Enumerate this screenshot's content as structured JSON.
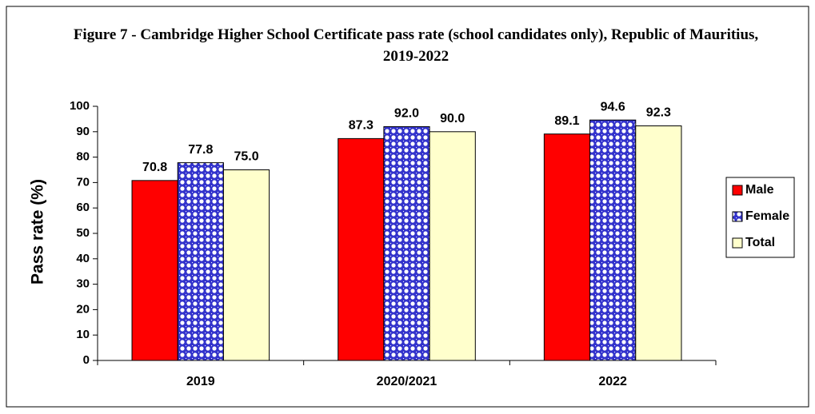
{
  "chart_data": {
    "type": "bar",
    "title": "Figure 7 - Cambridge Higher School Certificate  pass rate (school candidates only), Republic of Mauritius, 2019-2022",
    "y_label": "Pass rate (%)",
    "categories": [
      "2019",
      "2020/2021",
      "2022"
    ],
    "series": [
      {
        "name": "Male",
        "color": "#ff0000",
        "values": [
          70.8,
          87.3,
          89.1
        ],
        "value_labels": [
          "70.8",
          "87.3",
          "89.1"
        ]
      },
      {
        "name": "Female",
        "color": "#3333cc",
        "pattern": "dots",
        "values": [
          77.8,
          92.0,
          94.6
        ],
        "value_labels": [
          "77.8",
          "92.0",
          "94.6"
        ]
      },
      {
        "name": "Total",
        "color": "#ffffcc",
        "values": [
          75.0,
          90.0,
          92.3
        ],
        "value_labels": [
          "75.0",
          "90.0",
          "92.3"
        ]
      }
    ],
    "ylim": [
      0,
      100
    ],
    "yticks": [
      0,
      10,
      20,
      30,
      40,
      50,
      60,
      70,
      80,
      90,
      100
    ],
    "grid": false,
    "legend": "right"
  }
}
